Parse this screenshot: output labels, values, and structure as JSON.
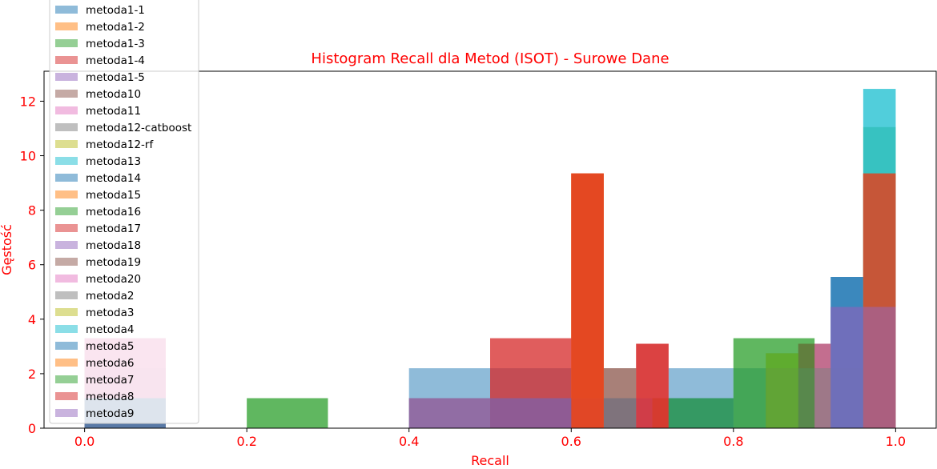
{
  "chart_data": {
    "type": "histogram",
    "title": "Histogram Recall dla Metod (ISOT) - Surowe Dane",
    "xlabel": "Recall",
    "ylabel": "Gęstość",
    "xlim": [
      -0.05,
      1.05
    ],
    "ylim": [
      0,
      13.1
    ],
    "xticks": [
      "0.0",
      "0.2",
      "0.4",
      "0.6",
      "0.8",
      "1.0"
    ],
    "yticks": [
      "0",
      "2",
      "4",
      "6",
      "8",
      "10",
      "12"
    ],
    "grid": false,
    "legend_position": "upper-left",
    "series": [
      {
        "name": "metoda1-1",
        "color": "#1f77b4",
        "bins": [
          [
            0.0,
            0.1,
            1.1
          ],
          [
            0.4,
            0.5,
            2.2
          ],
          [
            0.5,
            0.6,
            2.2
          ],
          [
            0.72,
            0.8,
            2.2
          ],
          [
            0.8,
            0.9,
            2.2
          ],
          [
            0.92,
            0.96,
            5.55
          ]
        ]
      },
      {
        "name": "metoda1-2",
        "color": "#ff7f0e",
        "bins": [
          [
            0.6,
            0.64,
            9.35
          ],
          [
            0.96,
            1.0,
            9.35
          ]
        ]
      },
      {
        "name": "metoda1-3",
        "color": "#2ca02c",
        "bins": [
          [
            0.2,
            0.3,
            1.1
          ],
          [
            0.8,
            0.9,
            3.3
          ],
          [
            0.96,
            1.0,
            11.05
          ]
        ]
      },
      {
        "name": "metoda1-4",
        "color": "#d62728",
        "bins": [
          [
            0.0,
            0.1,
            3.3
          ],
          [
            0.5,
            0.6,
            3.3
          ],
          [
            0.6,
            0.64,
            9.35
          ],
          [
            0.68,
            0.72,
            3.1
          ],
          [
            0.88,
            0.92,
            3.1
          ],
          [
            0.96,
            1.0,
            9.35
          ]
        ]
      },
      {
        "name": "metoda1-5",
        "color": "#9467bd",
        "bins": [
          [
            0.0,
            0.1,
            1.1
          ],
          [
            0.4,
            0.5,
            1.1
          ],
          [
            0.5,
            0.6,
            1.1
          ],
          [
            0.6,
            0.64,
            1.1
          ],
          [
            0.68,
            0.72,
            1.1
          ],
          [
            0.92,
            0.96,
            4.45
          ],
          [
            0.96,
            1.0,
            4.45
          ]
        ]
      },
      {
        "name": "metoda10",
        "color": "#8c564b",
        "bins": [
          [
            0.0,
            0.1,
            2.2
          ],
          [
            0.4,
            0.5,
            1.1
          ],
          [
            0.64,
            0.68,
            2.2
          ],
          [
            0.7,
            0.72,
            1.1
          ],
          [
            0.88,
            0.92,
            3.1
          ]
        ]
      },
      {
        "name": "metoda11",
        "color": "#e377c2",
        "bins": [
          [
            0.0,
            0.1,
            3.3
          ]
        ]
      },
      {
        "name": "metoda12-catboost",
        "color": "#7f7f7f",
        "bins": [
          [
            0.0,
            0.1,
            1.1
          ],
          [
            0.84,
            0.88,
            2.2
          ],
          [
            0.88,
            0.92,
            2.2
          ],
          [
            0.92,
            0.96,
            2.2
          ],
          [
            0.96,
            1.0,
            2.2
          ]
        ]
      },
      {
        "name": "metoda12-rf",
        "color": "#bcbd22",
        "bins": [
          [
            0.84,
            0.88,
            2.75
          ]
        ]
      },
      {
        "name": "metoda13",
        "color": "#17becf",
        "bins": [
          [
            0.96,
            1.0,
            12.45
          ]
        ]
      },
      {
        "name": "metoda14",
        "color": "#1f77b4",
        "bins": [
          [
            0.0,
            0.1,
            1.1
          ],
          [
            0.5,
            0.6,
            1.1
          ],
          [
            0.64,
            0.68,
            1.1
          ],
          [
            0.92,
            0.96,
            5.55
          ]
        ]
      },
      {
        "name": "metoda15",
        "color": "#ff7f0e",
        "bins": [
          [
            0.6,
            0.64,
            9.35
          ],
          [
            0.7,
            0.72,
            1.1
          ],
          [
            0.96,
            1.0,
            9.35
          ]
        ]
      },
      {
        "name": "metoda16",
        "color": "#2ca02c",
        "bins": [
          [
            0.72,
            0.8,
            1.1
          ],
          [
            0.84,
            0.88,
            2.75
          ]
        ]
      },
      {
        "name": "metoda17",
        "color": "#d62728",
        "bins": [
          [
            0.6,
            0.64,
            9.35
          ],
          [
            0.68,
            0.72,
            3.1
          ],
          [
            0.96,
            1.0,
            9.35
          ]
        ]
      },
      {
        "name": "metoda18",
        "color": "#9467bd",
        "bins": [
          [
            0.92,
            0.96,
            4.45
          ],
          [
            0.96,
            1.0,
            4.45
          ]
        ]
      },
      {
        "name": "metoda19",
        "color": "#8c564b",
        "bins": [
          [
            0.64,
            0.68,
            2.2
          ],
          [
            0.88,
            0.92,
            3.1
          ]
        ]
      },
      {
        "name": "metoda20",
        "color": "#e377c2",
        "bins": [
          [
            0.0,
            0.1,
            3.3
          ],
          [
            0.9,
            0.92,
            3.1
          ]
        ]
      },
      {
        "name": "metoda2",
        "color": "#7f7f7f",
        "bins": [
          [
            0.0,
            0.1,
            1.1
          ],
          [
            0.84,
            0.92,
            2.2
          ]
        ]
      },
      {
        "name": "metoda3",
        "color": "#bcbd22",
        "bins": [
          [
            0.84,
            0.88,
            2.75
          ]
        ]
      },
      {
        "name": "metoda4",
        "color": "#17becf",
        "bins": [
          [
            0.96,
            1.0,
            12.45
          ]
        ]
      },
      {
        "name": "metoda5",
        "color": "#1f77b4",
        "bins": [
          [
            0.0,
            0.1,
            1.1
          ],
          [
            0.5,
            0.6,
            1.1
          ],
          [
            0.72,
            0.8,
            1.1
          ],
          [
            0.92,
            0.96,
            5.55
          ]
        ]
      },
      {
        "name": "metoda6",
        "color": "#ff7f0e",
        "bins": [
          [
            0.6,
            0.64,
            9.35
          ],
          [
            0.96,
            1.0,
            9.35
          ]
        ]
      },
      {
        "name": "metoda7",
        "color": "#2ca02c",
        "bins": [
          [
            0.2,
            0.3,
            1.1
          ],
          [
            0.72,
            0.8,
            1.1
          ],
          [
            0.8,
            0.9,
            3.3
          ]
        ]
      },
      {
        "name": "metoda8",
        "color": "#d62728",
        "bins": [
          [
            0.5,
            0.6,
            3.3
          ],
          [
            0.6,
            0.64,
            9.35
          ],
          [
            0.68,
            0.72,
            3.1
          ],
          [
            0.96,
            1.0,
            9.35
          ]
        ]
      },
      {
        "name": "metoda9",
        "color": "#9467bd",
        "bins": [
          [
            0.4,
            0.5,
            1.1
          ],
          [
            0.5,
            0.6,
            1.1
          ],
          [
            0.92,
            0.96,
            4.45
          ],
          [
            0.96,
            1.0,
            4.45
          ]
        ]
      }
    ]
  }
}
